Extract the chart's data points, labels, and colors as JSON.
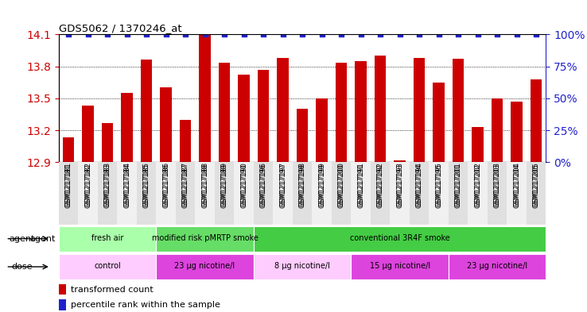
{
  "title": "GDS5062 / 1370246_at",
  "samples": [
    "GSM1217181",
    "GSM1217182",
    "GSM1217183",
    "GSM1217184",
    "GSM1217185",
    "GSM1217186",
    "GSM1217187",
    "GSM1217188",
    "GSM1217189",
    "GSM1217190",
    "GSM1217196",
    "GSM1217197",
    "GSM1217198",
    "GSM1217199",
    "GSM1217200",
    "GSM1217191",
    "GSM1217192",
    "GSM1217193",
    "GSM1217194",
    "GSM1217195",
    "GSM1217201",
    "GSM1217202",
    "GSM1217203",
    "GSM1217204",
    "GSM1217205"
  ],
  "bar_values": [
    13.13,
    13.43,
    13.27,
    13.55,
    13.86,
    13.6,
    13.3,
    14.1,
    13.83,
    13.72,
    13.77,
    13.88,
    13.4,
    13.5,
    13.83,
    13.85,
    13.9,
    12.92,
    13.88,
    13.65,
    13.87,
    13.23,
    13.5,
    13.47,
    13.68
  ],
  "bar_color": "#cc0000",
  "percentile_color": "#2222cc",
  "ymin": 12.9,
  "ymax": 14.1,
  "yticks": [
    12.9,
    13.2,
    13.5,
    13.8,
    14.1
  ],
  "right_yticks": [
    0,
    25,
    50,
    75,
    100
  ],
  "grid_lines": [
    13.2,
    13.5,
    13.8
  ],
  "agent_groups": [
    {
      "label": "fresh air",
      "start": 0,
      "end": 5,
      "color": "#aaffaa"
    },
    {
      "label": "modified risk pMRTP smoke",
      "start": 5,
      "end": 10,
      "color": "#66dd66"
    },
    {
      "label": "conventional 3R4F smoke",
      "start": 10,
      "end": 25,
      "color": "#44cc44"
    }
  ],
  "dose_groups": [
    {
      "label": "control",
      "start": 0,
      "end": 5,
      "color": "#ffccff"
    },
    {
      "label": "23 μg nicotine/l",
      "start": 5,
      "end": 10,
      "color": "#dd44dd"
    },
    {
      "label": "8 μg nicotine/l",
      "start": 10,
      "end": 15,
      "color": "#ffccff"
    },
    {
      "label": "15 μg nicotine/l",
      "start": 15,
      "end": 20,
      "color": "#dd44dd"
    },
    {
      "label": "23 μg nicotine/l",
      "start": 20,
      "end": 25,
      "color": "#dd44dd"
    }
  ],
  "legend_red": "transformed count",
  "legend_blue": "percentile rank within the sample",
  "bar_label_color": "#cc0000",
  "right_axis_color": "#2222cc"
}
